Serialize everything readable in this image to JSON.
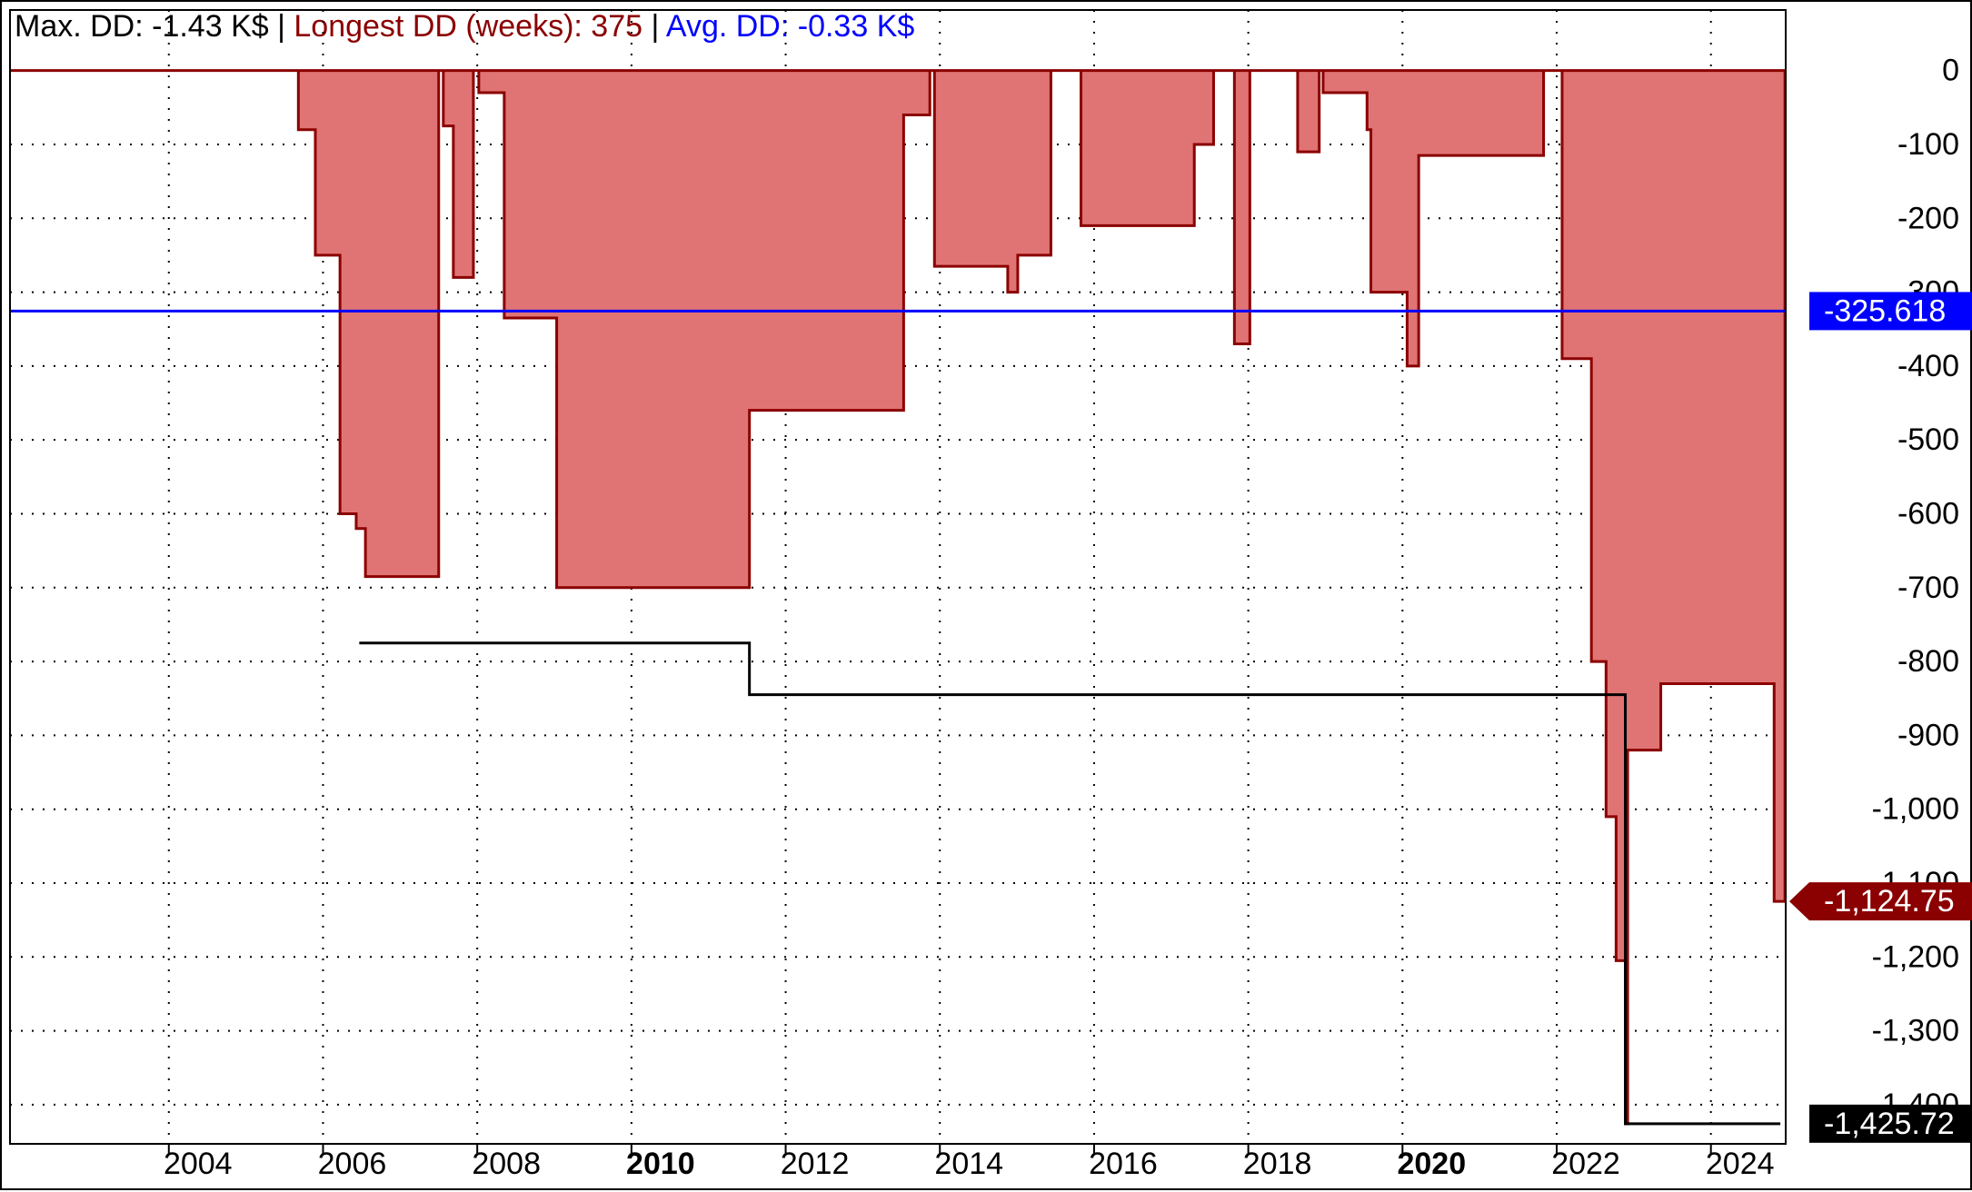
{
  "chart_data": {
    "type": "drawdown",
    "title_parts": [
      {
        "text": "Max. DD: -1.43 K$ | ",
        "color": "#000000"
      },
      {
        "text": "Longest DD (weeks): 375",
        "color": "#8b0000"
      },
      {
        "text": " | ",
        "color": "#000000"
      },
      {
        "text": "Avg. DD: -0.33 K$",
        "color": "#0000ff"
      }
    ],
    "xlim": [
      2001.94,
      2024.97
    ],
    "xticks": [
      2004,
      2006,
      2008,
      2010,
      2012,
      2014,
      2016,
      2018,
      2020,
      2022,
      2024
    ],
    "bold_tick_every": 10,
    "ylim": [
      -1453,
      82
    ],
    "yticks": [
      0,
      -100,
      -200,
      -300,
      -400,
      -500,
      -600,
      -700,
      -800,
      -900,
      {
        "value": -1000,
        "label": "-1,000"
      },
      {
        "value": -1100,
        "label": "-1,100"
      },
      {
        "value": -1200,
        "label": "-1,200"
      },
      {
        "value": -1300,
        "label": "-1,300"
      },
      {
        "value": -1400,
        "label": "-1,400"
      }
    ],
    "grid": true,
    "series": [
      {
        "kind": "drawdown",
        "color": "#e07474",
        "line_color": "#8b0000",
        "x": [
          2001.94,
          2005.68,
          2005.9,
          2006.22,
          2006.43,
          2006.55,
          2007.5,
          2007.56,
          2007.69,
          2007.95,
          2008.02,
          2008.35,
          2009.03,
          2011.53,
          2013.53,
          2013.87,
          2013.93,
          2014.88,
          2015.01,
          2015.44,
          2015.83,
          2017.3,
          2017.55,
          2017.82,
          2018.02,
          2018.64,
          2018.92,
          2018.97,
          2019.54,
          2019.59,
          2020.06,
          2020.21,
          2021.83,
          2022.07,
          2022.45,
          2022.64,
          2022.77,
          2022.89,
          2022.92,
          2023.35,
          2024.82,
          2024.96
        ],
        "values": [
          0,
          -80,
          -250,
          -600,
          -620,
          -685,
          0,
          -75,
          -280,
          0,
          -30,
          -335,
          -700,
          -460,
          -60,
          0,
          -265,
          -300,
          -250,
          0,
          -210,
          -100,
          0,
          -370,
          0,
          -110,
          0,
          -30,
          -80,
          -300,
          -400,
          -115,
          0,
          -390,
          -800,
          -1010,
          -1205,
          -1425.72,
          -920,
          -830,
          -1124.75,
          -1124.75
        ],
        "last_label": "-1,124.75"
      },
      {
        "kind": "max_drawdown",
        "color": "#000000",
        "x": [
          2006.47,
          2011.53,
          2022.89,
          2024.9
        ],
        "values": [
          -775,
          -845,
          -1425.72,
          -1425.72
        ],
        "last_label": "-1,425.72"
      },
      {
        "kind": "average",
        "color": "#0000ff",
        "values": [
          -325.618
        ],
        "last_label": "-325.618"
      }
    ]
  }
}
